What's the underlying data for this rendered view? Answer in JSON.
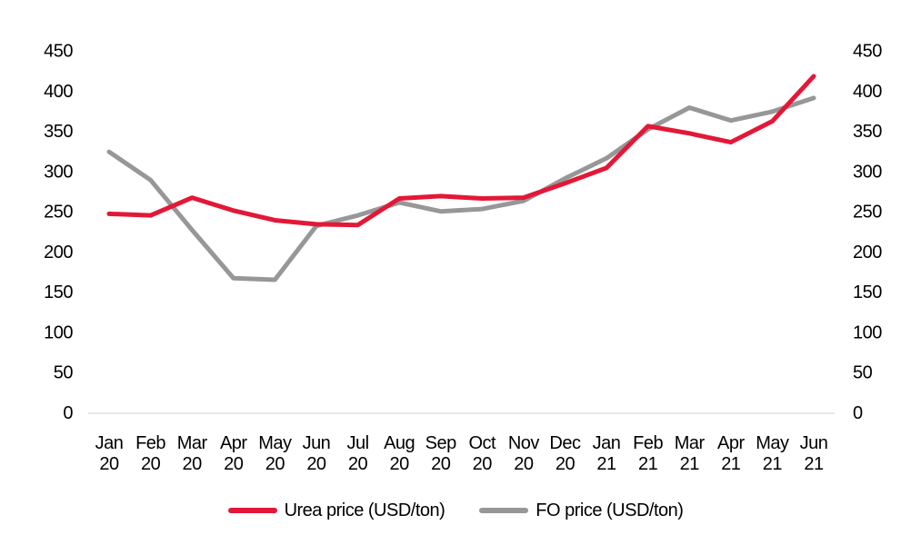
{
  "chart_data": {
    "type": "line",
    "categories": [
      "Jan 20",
      "Feb 20",
      "Mar 20",
      "Apr 20",
      "May 20",
      "Jun 20",
      "Jul 20",
      "Aug 20",
      "Sep 20",
      "Oct 20",
      "Nov 20",
      "Dec 20",
      "Jan 21",
      "Feb 21",
      "Mar 21",
      "Apr 21",
      "May 21",
      "Jun 21"
    ],
    "series": [
      {
        "id": "urea-price",
        "name": "Urea price (USD/ton)",
        "color": "#e31837",
        "values": [
          248,
          246,
          268,
          252,
          240,
          235,
          234,
          267,
          270,
          267,
          268,
          286,
          305,
          357,
          348,
          337,
          363,
          419
        ]
      },
      {
        "id": "fo-price",
        "name": "FO price (USD/ton)",
        "color": "#979797",
        "values": [
          325,
          290,
          228,
          168,
          166,
          233,
          246,
          262,
          251,
          254,
          264,
          292,
          317,
          353,
          380,
          364,
          375,
          392
        ]
      }
    ],
    "ylim": [
      0,
      450
    ],
    "yticks": [
      0,
      50,
      100,
      150,
      200,
      250,
      300,
      350,
      400,
      450
    ],
    "y_axis_sides": "both",
    "xlabel": "",
    "ylabel": "",
    "title": "",
    "grid": false,
    "axis_line_color": "#d9d9d9",
    "text_color": "#000000",
    "legend_position": "bottom"
  }
}
